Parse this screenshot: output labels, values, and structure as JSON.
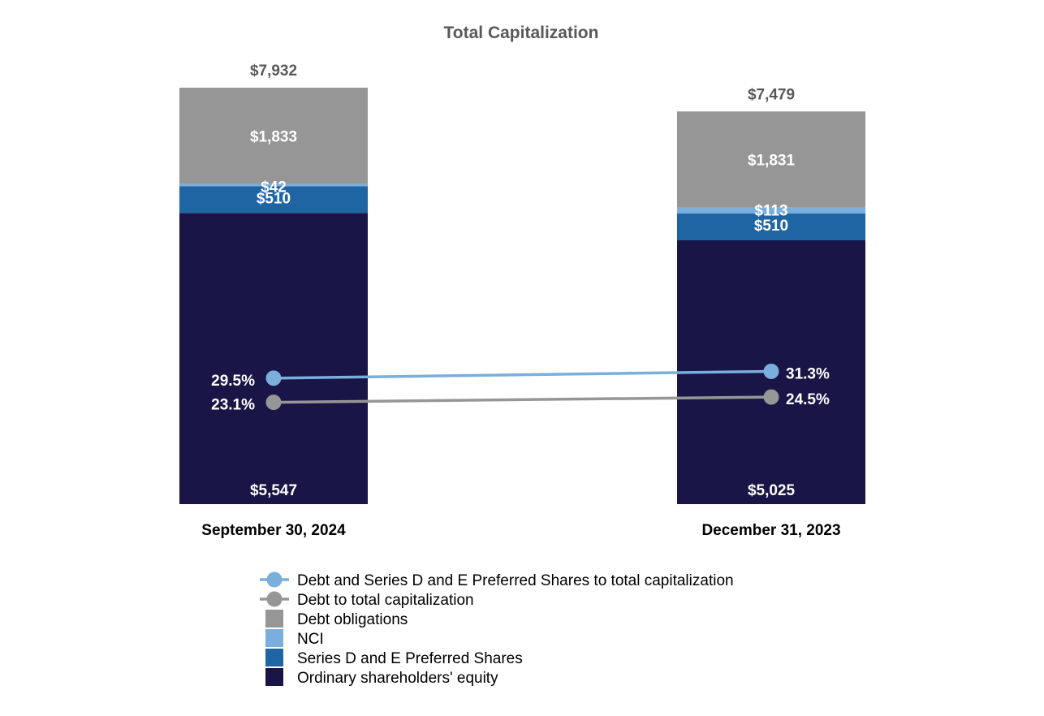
{
  "chart_data": {
    "type": "bar",
    "stacked": true,
    "title": "Total Capitalization",
    "categories": [
      "September 30, 2024",
      "December 31, 2023"
    ],
    "totals": [
      7932,
      7479
    ],
    "total_labels": [
      "$7,932",
      "$7,479"
    ],
    "series": [
      {
        "key": "equity",
        "name": "Ordinary shareholders' equity",
        "color": "#191547",
        "values": [
          5547,
          5025
        ],
        "labels": [
          "$5,547",
          "$5,025"
        ]
      },
      {
        "key": "preferred",
        "name": "Series D and E Preferred Shares",
        "color": "#1f64a3",
        "values": [
          510,
          510
        ],
        "labels": [
          "$510",
          "$510"
        ]
      },
      {
        "key": "nci",
        "name": "NCI",
        "color": "#7aaedd",
        "values": [
          42,
          113
        ],
        "labels": [
          "$42",
          "$113"
        ]
      },
      {
        "key": "debt",
        "name": "Debt obligations",
        "color": "#969696",
        "values": [
          1833,
          1831
        ],
        "labels": [
          "$1,833",
          "$1,831"
        ]
      }
    ],
    "lines": [
      {
        "key": "debt_pref_ratio",
        "name": "Debt and Series D and E Preferred Shares to total capitalization",
        "color": "#7aaedd",
        "values": [
          29.5,
          31.3
        ],
        "labels": [
          "29.5%",
          "31.3%"
        ]
      },
      {
        "key": "debt_ratio",
        "name": "Debt to total capitalization",
        "color": "#969696",
        "values": [
          23.1,
          24.5
        ],
        "labels": [
          "23.1%",
          "24.5%"
        ]
      }
    ],
    "legend": {
      "position": "bottom",
      "items": [
        {
          "label": "Debt and Series D and E Preferred Shares to total capitalization",
          "kind": "line",
          "color": "#7aaedd"
        },
        {
          "label": "Debt to total capitalization",
          "kind": "line",
          "color": "#969696"
        },
        {
          "label": "Debt obligations",
          "kind": "box",
          "color": "#969696"
        },
        {
          "label": "NCI",
          "kind": "box",
          "color": "#7aaedd"
        },
        {
          "label": "Series D and E Preferred Shares",
          "kind": "box",
          "color": "#1f64a3"
        },
        {
          "label": "Ordinary shareholders' equity",
          "kind": "box",
          "color": "#191547"
        }
      ]
    }
  }
}
